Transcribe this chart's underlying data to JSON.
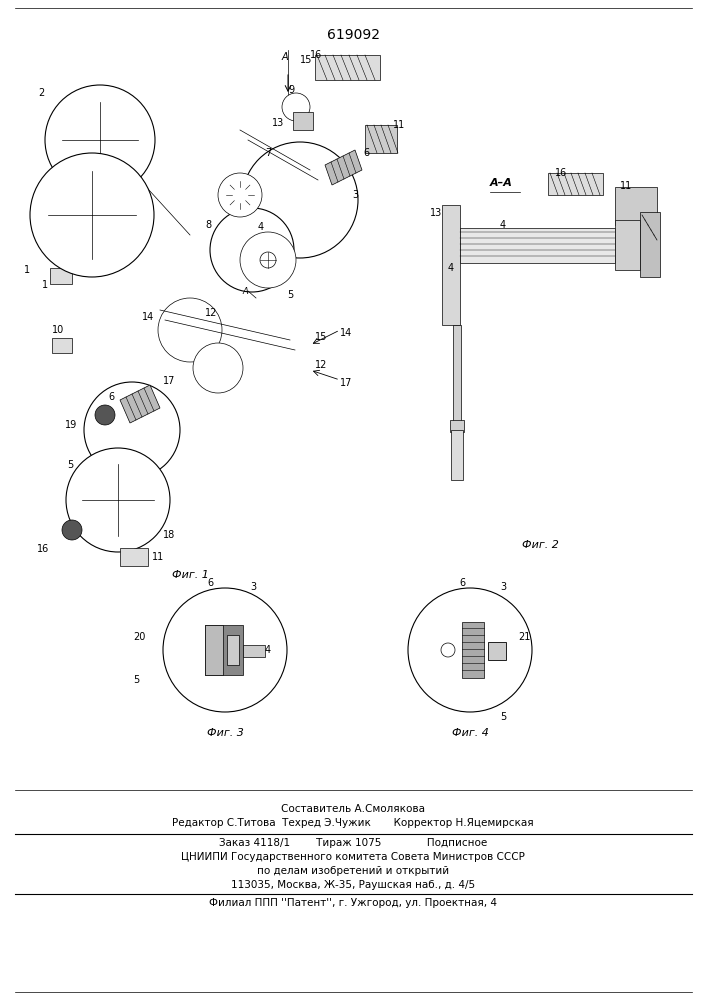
{
  "patent_number": "619092",
  "footer": {
    "line1": "Составитель А.Смолякова",
    "line2": "Редактор С.Титова  Техред Э.Чужик       Корректор Н.Яцемирская",
    "line3": "Заказ 4118/1        Тираж 1075              Подписное",
    "line4": "ЦНИИПИ Государственного комитета Совета Министров СССР",
    "line5": "по делам изобретений и открытий",
    "line6": "113035, Москва, Ж-35, Раушская наб., д. 4/5",
    "line7": "Филиал ППП ''Патент'', г. Ужгород, ул. Проектная, 4"
  }
}
